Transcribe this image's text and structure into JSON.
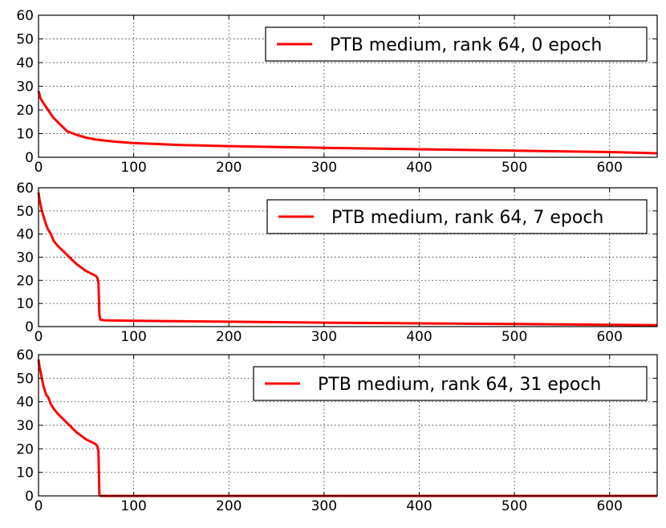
{
  "chart_data": [
    {
      "type": "line",
      "title": "",
      "xlabel": "",
      "ylabel": "",
      "xlim": [
        0,
        650
      ],
      "ylim": [
        0,
        60
      ],
      "xticks": [
        0,
        100,
        200,
        300,
        400,
        500,
        600
      ],
      "yticks": [
        0,
        10,
        20,
        30,
        40,
        50,
        60
      ],
      "grid": true,
      "legend_position": "top-right",
      "series": [
        {
          "name": "PTB medium, rank 64, 0 epoch",
          "color": "#ff0000",
          "x": [
            0,
            2,
            5,
            10,
            15,
            20,
            25,
            30,
            40,
            50,
            60,
            80,
            100,
            150,
            200,
            300,
            400,
            500,
            600,
            650
          ],
          "y": [
            28,
            25,
            23,
            20,
            17,
            15,
            13,
            11,
            9.5,
            8.3,
            7.5,
            6.6,
            6.0,
            5.2,
            4.7,
            4.0,
            3.4,
            2.8,
            2.2,
            1.7
          ]
        }
      ]
    },
    {
      "type": "line",
      "title": "",
      "xlabel": "",
      "ylabel": "",
      "xlim": [
        0,
        650
      ],
      "ylim": [
        0,
        60
      ],
      "xticks": [
        0,
        100,
        200,
        300,
        400,
        500,
        600
      ],
      "yticks": [
        0,
        10,
        20,
        30,
        40,
        50,
        60
      ],
      "grid": true,
      "legend_position": "top-right",
      "series": [
        {
          "name": "PTB medium, rank 64, 7 epoch",
          "color": "#ff0000",
          "x": [
            0,
            1,
            3,
            5,
            8,
            10,
            13,
            16,
            20,
            25,
            30,
            35,
            40,
            45,
            50,
            55,
            60,
            62,
            63,
            64,
            65,
            70,
            100,
            200,
            300,
            400,
            500,
            600,
            650
          ],
          "y": [
            58,
            55,
            51,
            48,
            44,
            42,
            40,
            37,
            35,
            33,
            31,
            29,
            27,
            25.5,
            24,
            23,
            22,
            21,
            19,
            5,
            3,
            2.7,
            2.5,
            2.1,
            1.7,
            1.4,
            1.1,
            0.8,
            0.6
          ]
        }
      ]
    },
    {
      "type": "line",
      "title": "",
      "xlabel": "",
      "ylabel": "",
      "xlim": [
        0,
        650
      ],
      "ylim": [
        0,
        60
      ],
      "xticks": [
        0,
        100,
        200,
        300,
        400,
        500,
        600
      ],
      "yticks": [
        0,
        10,
        20,
        30,
        40,
        50,
        60
      ],
      "grid": true,
      "legend_position": "top-right",
      "series": [
        {
          "name": "PTB medium, rank 64, 31 epoch",
          "color": "#ff0000",
          "x": [
            0,
            1,
            3,
            5,
            8,
            10,
            13,
            16,
            20,
            25,
            30,
            35,
            40,
            45,
            50,
            55,
            60,
            62,
            63,
            64,
            65,
            100,
            200,
            300,
            400,
            500,
            600,
            650
          ],
          "y": [
            58,
            55,
            51,
            47,
            43,
            42,
            39,
            37,
            35,
            33,
            31,
            29,
            27,
            25.5,
            24,
            23,
            22,
            21,
            19,
            0.3,
            0,
            0,
            0,
            0,
            0,
            0,
            0,
            0
          ]
        }
      ]
    }
  ]
}
